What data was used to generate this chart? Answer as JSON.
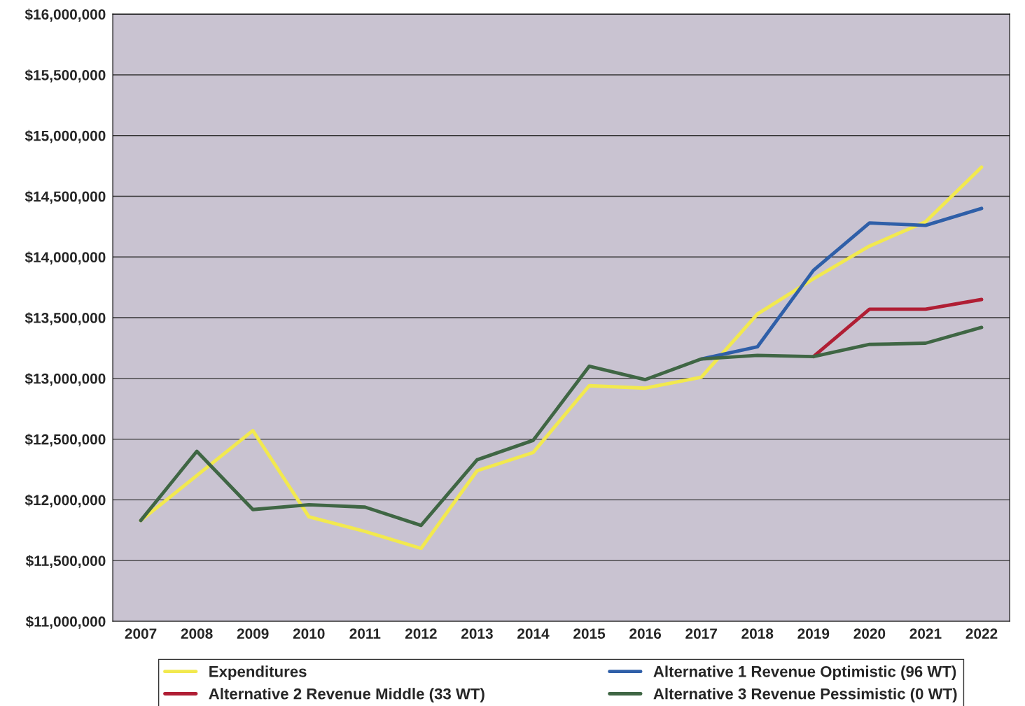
{
  "chart_data": {
    "type": "line",
    "categories": [
      "2007",
      "2008",
      "2009",
      "2010",
      "2011",
      "2012",
      "2013",
      "2014",
      "2015",
      "2016",
      "2017",
      "2018",
      "2019",
      "2020",
      "2021",
      "2022"
    ],
    "series": [
      {
        "name": "Expenditures",
        "color": "#f2e94e",
        "values": [
          11830000,
          12200000,
          12570000,
          11860000,
          11740000,
          11600000,
          12240000,
          12390000,
          12940000,
          12920000,
          13010000,
          13530000,
          13820000,
          14090000,
          14290000,
          14740000
        ]
      },
      {
        "name": "Alternative 1 Revenue Optimistic (96 WT)",
        "color": "#2f5fa8",
        "values": [
          null,
          null,
          null,
          null,
          null,
          null,
          null,
          null,
          null,
          null,
          13160000,
          13260000,
          13890000,
          14280000,
          14260000,
          14400000
        ]
      },
      {
        "name": "Alternative 2 Revenue Middle (33 WT)",
        "color": "#b01e34",
        "values": [
          null,
          null,
          null,
          null,
          null,
          null,
          null,
          null,
          null,
          null,
          null,
          null,
          13180000,
          13570000,
          13570000,
          13650000
        ]
      },
      {
        "name": "Alternative 3 Revenue Pessimistic (0 WT)",
        "color": "#3f6644",
        "values": [
          11830000,
          12400000,
          11920000,
          11960000,
          11940000,
          11790000,
          12330000,
          12490000,
          13100000,
          12990000,
          13160000,
          13190000,
          13180000,
          13280000,
          13290000,
          13420000
        ]
      }
    ],
    "ylim": [
      11000000,
      16000000
    ],
    "yticks": [
      {
        "value": 11000000,
        "label": "$11,000,000"
      },
      {
        "value": 11500000,
        "label": "$11,500,000"
      },
      {
        "value": 12000000,
        "label": "$12,000,000"
      },
      {
        "value": 12500000,
        "label": "$12,500,000"
      },
      {
        "value": 13000000,
        "label": "$13,000,000"
      },
      {
        "value": 13500000,
        "label": "$13,500,000"
      },
      {
        "value": 14000000,
        "label": "$14,000,000"
      },
      {
        "value": 14500000,
        "label": "$14,500,000"
      },
      {
        "value": 15000000,
        "label": "$15,000,000"
      },
      {
        "value": 15500000,
        "label": "$15,500,000"
      },
      {
        "value": 16000000,
        "label": "$16,000,000"
      }
    ],
    "grid": "y",
    "legend": "bottom",
    "marker": "none",
    "line_style": "solid"
  }
}
